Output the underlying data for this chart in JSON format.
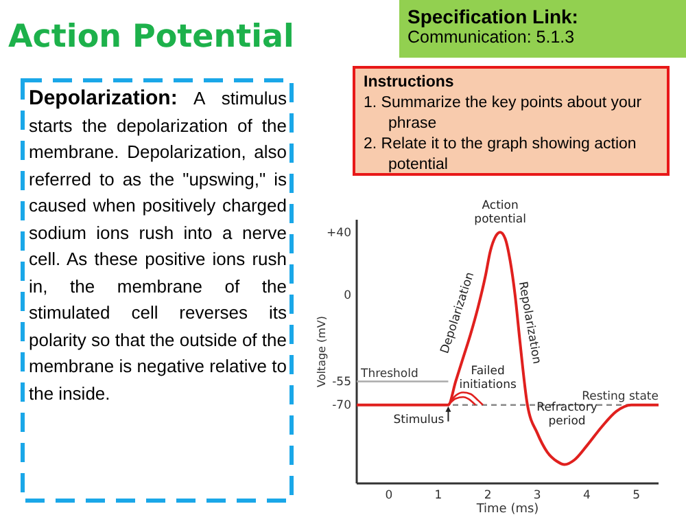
{
  "chart_data": {
    "type": "line",
    "title": "Action Potential",
    "xlabel": "Time (ms)",
    "ylabel": "Voltage (mV)",
    "x": [
      -0.65,
      1.2,
      1.35,
      1.5,
      1.65,
      1.8,
      1.95,
      2.05,
      2.15,
      2.25,
      2.35,
      2.45,
      2.55,
      2.65,
      2.8,
      3.0,
      3.2,
      3.4,
      3.55,
      3.75,
      4.0,
      4.3,
      4.6,
      4.9,
      5.2,
      5.45
    ],
    "series": [
      {
        "color": "#e0201e",
        "values": [
          -70,
          -70,
          -55,
          -40,
          -25,
          -8,
          12,
          28,
          37,
          40,
          36,
          22,
          0,
          -30,
          -70,
          -88,
          -100,
          -106,
          -108,
          -105,
          -96,
          -84,
          -74,
          -70,
          -70,
          -70
        ]
      },
      {
        "color": "#e0201e",
        "x": [
          1.2,
          1.35,
          1.5,
          1.65,
          1.8,
          1.9
        ],
        "values": [
          -70,
          -64,
          -62,
          -63,
          -67,
          -70
        ]
      },
      {
        "color": "#e0201e",
        "x": [
          1.2,
          1.35,
          1.5,
          1.6,
          1.75
        ],
        "values": [
          -70,
          -66,
          -65,
          -66,
          -70
        ]
      }
    ],
    "xlim": [
      -0.65,
      5.45
    ],
    "ylim": [
      -120,
      48
    ],
    "xticks": [
      0,
      1,
      2,
      3,
      4,
      5
    ],
    "yticks": [
      {
        "value": 40,
        "label": "+40"
      },
      0,
      -55,
      -70
    ],
    "marker": "none",
    "line_style": "solid",
    "grid": false,
    "ref_lines": [
      {
        "axis": "y",
        "value": -55,
        "label": "Threshold",
        "color": "#aaaaaa",
        "line_style": "solid"
      },
      {
        "axis": "y",
        "value": -70,
        "label": "Resting state",
        "color": "#888888",
        "line_style": "dashed"
      }
    ],
    "annotations": [
      "Specification Link:",
      "Communication: 5.1.3",
      "Instructions",
      "1. Summarize the key points about your phrase",
      "2. Relate it to the graph showing action potential",
      "Depolarization:",
      "A stimulus starts the depolarization of the membrane. Depolarization, also referred to as the \"upswing,\" is caused when positively charged sodium ions rush into a nerve cell. As these positive ions rush in, the membrane of the stimulated cell reverses its polarity so that the outside of the membrane is negative relative to the inside.",
      "Depolarization",
      "Repolarization",
      "Failed initiations",
      "Refractory period",
      {
        "text": "Action potential",
        "x": 2.25,
        "y": 40
      },
      {
        "text": "Stimulus",
        "x": 1.2,
        "y": -70
      }
    ]
  }
}
